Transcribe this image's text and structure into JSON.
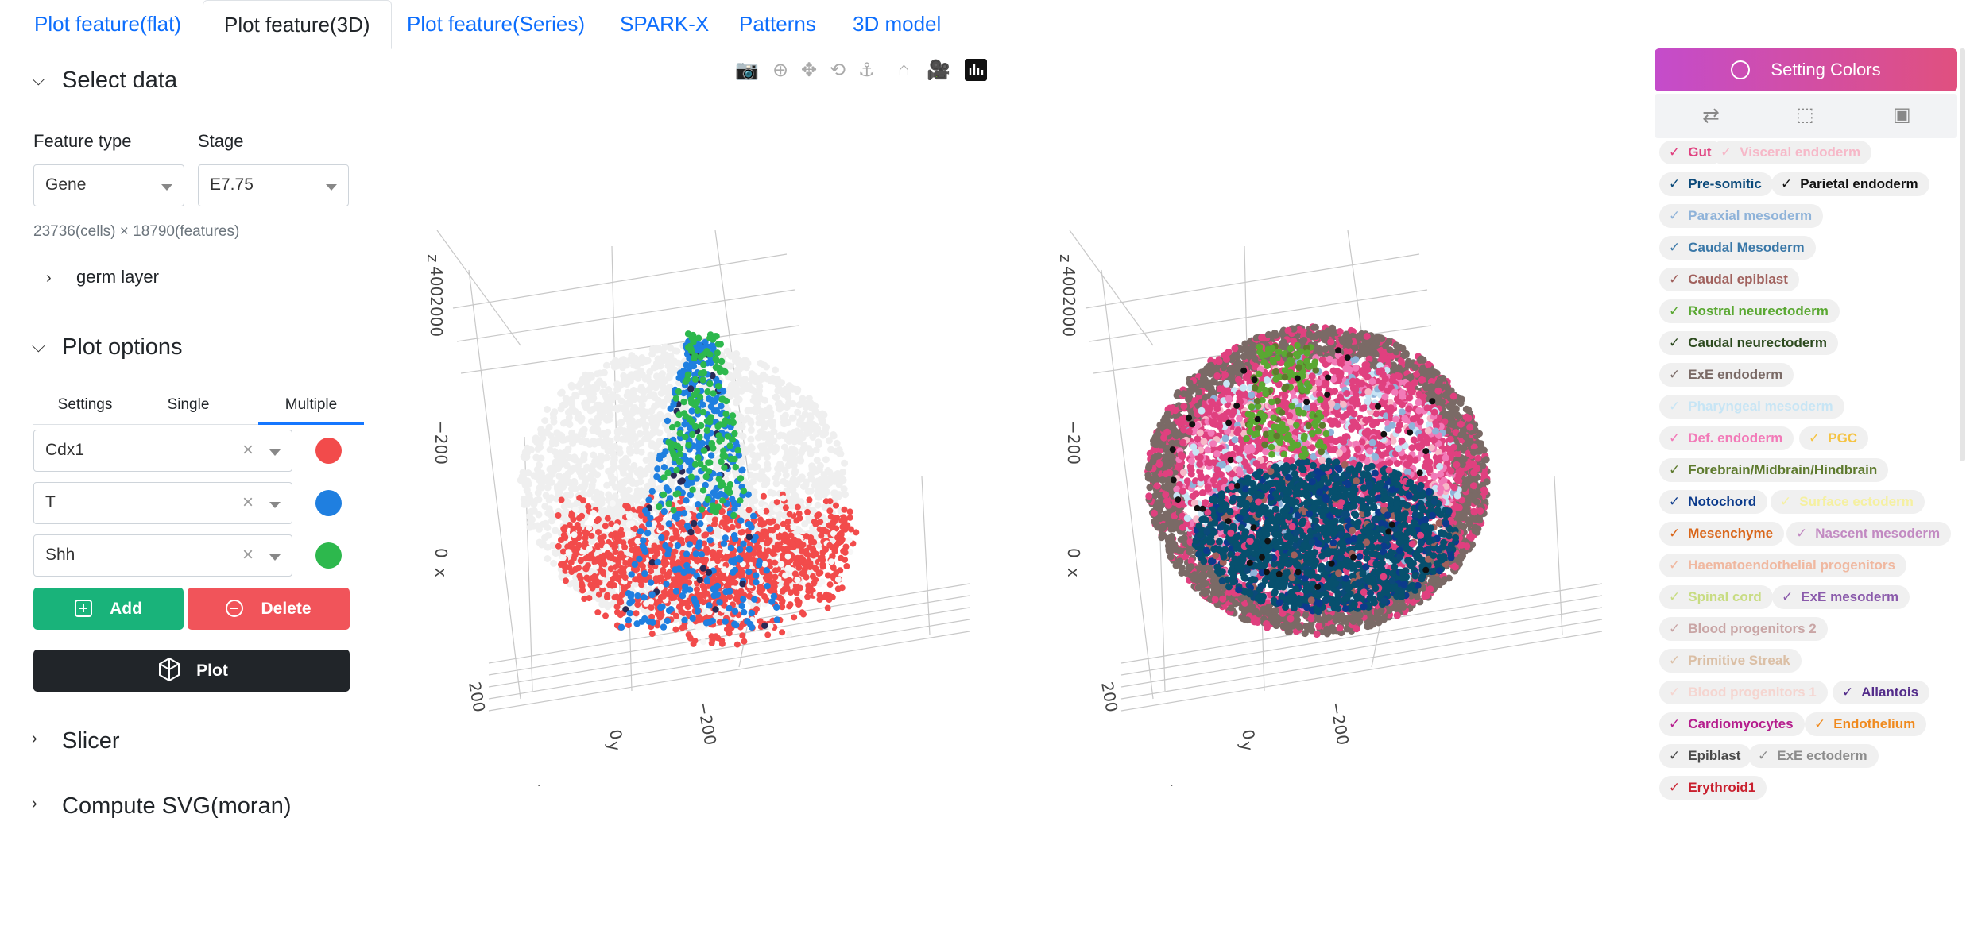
{
  "tabs": [
    {
      "label": "Plot feature(flat)",
      "active": false
    },
    {
      "label": "Plot feature(3D)",
      "active": true
    },
    {
      "label": "Plot feature(Series)",
      "active": false
    },
    {
      "label": "SPARK-X",
      "active": false
    },
    {
      "label": "Patterns",
      "active": false
    },
    {
      "label": "3D model",
      "active": false
    }
  ],
  "select_data": {
    "title": "Select data",
    "feature_type_label": "Feature type",
    "feature_type_value": "Gene",
    "stage_label": "Stage",
    "stage_value": "E7.75",
    "summary": "23736(cells) × 18790(features)",
    "germ_layer_label": "germ layer"
  },
  "plot_options": {
    "title": "Plot options",
    "subtabs": [
      "Settings",
      "Single",
      "Multiple"
    ],
    "active_subtab": "Multiple",
    "genes": [
      {
        "name": "Cdx1",
        "color": "#f24b4b"
      },
      {
        "name": "T",
        "color": "#1f7fe0"
      },
      {
        "name": "Shh",
        "color": "#2db84d"
      }
    ],
    "add_label": "Add",
    "delete_label": "Delete",
    "plot_label": "Plot"
  },
  "slicer": {
    "title": "Slicer"
  },
  "compute_svg": {
    "title": "Compute SVG(moran)"
  },
  "axes": {
    "z_label": "z",
    "z_ticks": [
      "0",
      "200",
      "400"
    ],
    "x_label": "x",
    "x_tick_neg": "−200",
    "x_tick_zero": "0",
    "bottom_ticks": [
      "200",
      "0",
      "−200"
    ],
    "y_label": "y"
  },
  "legend": {
    "button_label": "Setting Colors",
    "items": [
      {
        "label": "Gut",
        "color": "#e0407f"
      },
      {
        "label": "Visceral endoderm",
        "color": "#f6b8c8"
      },
      {
        "label": "Pre-somitic",
        "color": "#0b4a7a"
      },
      {
        "label": "Parietal endoderm",
        "color": "#111111"
      },
      {
        "label": "Paraxial mesoderm",
        "color": "#8fb3d9"
      },
      {
        "label": "Caudal Mesoderm",
        "color": "#3a78a8"
      },
      {
        "label": "Caudal epiblast",
        "color": "#a0605c"
      },
      {
        "label": "Rostral neurectoderm",
        "color": "#5aa832"
      },
      {
        "label": "Caudal neurectoderm",
        "color": "#2c4a1e"
      },
      {
        "label": "ExE endoderm",
        "color": "#7a6a66"
      },
      {
        "label": "Pharyngeal mesoderm",
        "color": "#c7e5f5"
      },
      {
        "label": "Def. endoderm",
        "color": "#f27ab8"
      },
      {
        "label": "PGC",
        "color": "#f5c342"
      },
      {
        "label": "Forebrain/Midbrain/Hindbrain",
        "color": "#5e7a2e"
      },
      {
        "label": "Notochord",
        "color": "#0c3b8c"
      },
      {
        "label": "Surface ectoderm",
        "color": "#f5f0a0"
      },
      {
        "label": "Mesenchyme",
        "color": "#d9661a"
      },
      {
        "label": "Nascent mesoderm",
        "color": "#c28ac2"
      },
      {
        "label": "Haematoendothelial progenitors",
        "color": "#f0b8a0"
      },
      {
        "label": "Spinal cord",
        "color": "#c8dc82"
      },
      {
        "label": "ExE mesoderm",
        "color": "#8a5aab"
      },
      {
        "label": "Blood progenitors 2",
        "color": "#c9a5a5"
      },
      {
        "label": "Primitive Streak",
        "color": "#dbbfa5"
      },
      {
        "label": "Blood progenitors 1",
        "color": "#f5d5d0"
      },
      {
        "label": "Allantois",
        "color": "#532c8a"
      },
      {
        "label": "Cardiomyocytes",
        "color": "#b51d8d"
      },
      {
        "label": "Endothelium",
        "color": "#f08a1e"
      },
      {
        "label": "Epiblast",
        "color": "#4a4a4a"
      },
      {
        "label": "ExE ectoderm",
        "color": "#8c8c8c"
      },
      {
        "label": "Erythroid1",
        "color": "#c9202e"
      }
    ]
  }
}
